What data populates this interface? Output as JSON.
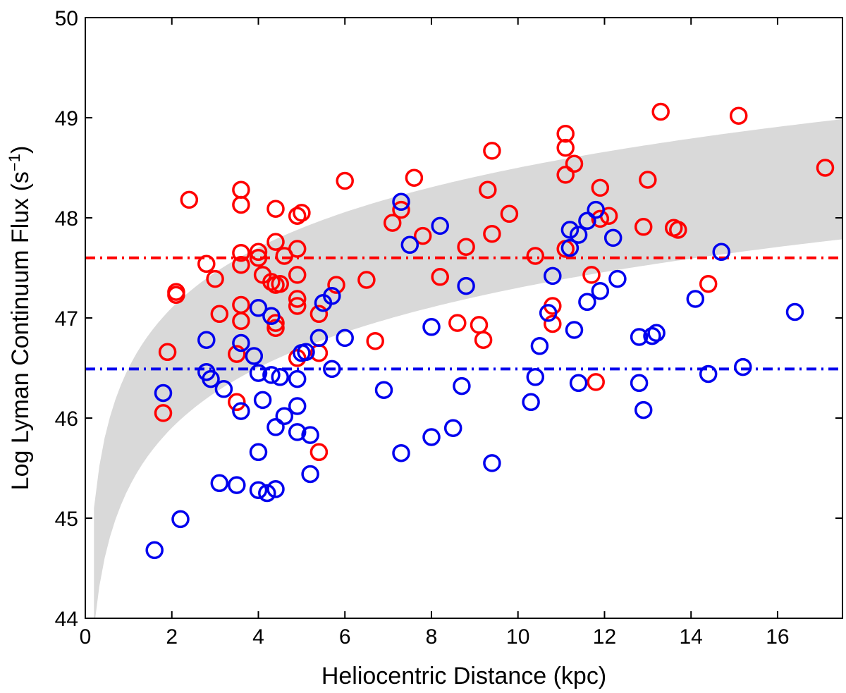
{
  "chart_data": {
    "type": "scatter",
    "title": "",
    "xlabel": "Heliocentric Distance (kpc)",
    "ylabel_main": "Log Lyman Continuum Flux (s",
    "ylabel_sup": "−1",
    "ylabel_end": ")",
    "xlim": [
      0,
      17.5
    ],
    "ylim": [
      44,
      50
    ],
    "xticks": [
      0,
      2,
      4,
      6,
      8,
      10,
      12,
      14,
      16
    ],
    "yticks": [
      44,
      45,
      46,
      47,
      48,
      49,
      50
    ],
    "grid": false,
    "colors": {
      "red": "#ff0000",
      "blue": "#0000ee",
      "band": "#d9d9d9",
      "frame": "#000000"
    },
    "reference_lines": [
      {
        "name": "red-threshold",
        "y": 47.6,
        "color": "#ff0000",
        "style": "dash-dot"
      },
      {
        "name": "blue-threshold",
        "y": 46.49,
        "color": "#0000ee",
        "style": "dash-dot"
      }
    ],
    "sensitivity_band": {
      "lower_at_1kpc": 45.3,
      "upper_at_1kpc": 46.5
    },
    "series": [
      {
        "name": "red",
        "color": "#ff0000",
        "points": [
          [
            1.8,
            46.05
          ],
          [
            1.9,
            46.66
          ],
          [
            2.1,
            47.23
          ],
          [
            2.1,
            47.26
          ],
          [
            2.4,
            48.18
          ],
          [
            2.8,
            47.54
          ],
          [
            3.0,
            47.39
          ],
          [
            3.1,
            47.04
          ],
          [
            3.5,
            46.64
          ],
          [
            3.5,
            46.16
          ],
          [
            3.6,
            48.28
          ],
          [
            3.6,
            48.13
          ],
          [
            3.6,
            47.65
          ],
          [
            3.6,
            47.53
          ],
          [
            3.6,
            47.13
          ],
          [
            3.6,
            46.97
          ],
          [
            4.0,
            47.66
          ],
          [
            4.0,
            47.6
          ],
          [
            4.1,
            47.43
          ],
          [
            4.3,
            47.36
          ],
          [
            4.4,
            48.09
          ],
          [
            4.4,
            47.76
          ],
          [
            4.4,
            47.33
          ],
          [
            4.4,
            46.95
          ],
          [
            4.4,
            46.9
          ],
          [
            4.5,
            47.34
          ],
          [
            4.6,
            47.62
          ],
          [
            4.9,
            48.02
          ],
          [
            4.9,
            47.69
          ],
          [
            4.9,
            47.43
          ],
          [
            4.9,
            47.19
          ],
          [
            4.9,
            47.12
          ],
          [
            4.9,
            46.6
          ],
          [
            5.0,
            48.05
          ],
          [
            5.4,
            47.04
          ],
          [
            5.4,
            46.65
          ],
          [
            5.4,
            45.66
          ],
          [
            5.8,
            47.33
          ],
          [
            6.0,
            48.37
          ],
          [
            6.5,
            47.38
          ],
          [
            6.7,
            46.77
          ],
          [
            7.1,
            47.95
          ],
          [
            7.3,
            48.08
          ],
          [
            7.6,
            48.4
          ],
          [
            7.8,
            47.82
          ],
          [
            8.2,
            47.41
          ],
          [
            8.6,
            46.95
          ],
          [
            8.8,
            47.71
          ],
          [
            9.1,
            46.93
          ],
          [
            9.2,
            46.78
          ],
          [
            9.3,
            48.28
          ],
          [
            9.4,
            47.84
          ],
          [
            9.4,
            48.67
          ],
          [
            9.8,
            48.04
          ],
          [
            10.4,
            47.62
          ],
          [
            10.8,
            47.12
          ],
          [
            10.8,
            46.94
          ],
          [
            11.1,
            48.84
          ],
          [
            11.1,
            48.7
          ],
          [
            11.1,
            48.43
          ],
          [
            11.1,
            47.69
          ],
          [
            11.3,
            48.54
          ],
          [
            11.7,
            47.43
          ],
          [
            11.8,
            46.36
          ],
          [
            11.9,
            48.3
          ],
          [
            11.9,
            47.99
          ],
          [
            12.1,
            48.02
          ],
          [
            12.9,
            47.91
          ],
          [
            13.0,
            48.38
          ],
          [
            13.3,
            49.06
          ],
          [
            13.6,
            47.9
          ],
          [
            13.7,
            47.88
          ],
          [
            14.4,
            47.34
          ],
          [
            15.1,
            49.02
          ],
          [
            17.1,
            48.5
          ]
        ]
      },
      {
        "name": "blue",
        "color": "#0000ee",
        "points": [
          [
            1.6,
            44.68
          ],
          [
            1.8,
            46.25
          ],
          [
            2.2,
            44.99
          ],
          [
            2.8,
            46.78
          ],
          [
            2.8,
            46.46
          ],
          [
            2.9,
            46.39
          ],
          [
            3.1,
            45.35
          ],
          [
            3.2,
            46.29
          ],
          [
            3.5,
            45.33
          ],
          [
            3.6,
            46.75
          ],
          [
            3.6,
            46.07
          ],
          [
            3.9,
            46.62
          ],
          [
            4.0,
            47.1
          ],
          [
            4.0,
            46.45
          ],
          [
            4.0,
            45.66
          ],
          [
            4.0,
            45.28
          ],
          [
            4.1,
            46.18
          ],
          [
            4.2,
            45.25
          ],
          [
            4.3,
            47.02
          ],
          [
            4.3,
            46.43
          ],
          [
            4.4,
            45.91
          ],
          [
            4.4,
            45.29
          ],
          [
            4.5,
            46.41
          ],
          [
            4.6,
            46.02
          ],
          [
            4.9,
            46.39
          ],
          [
            4.9,
            46.12
          ],
          [
            4.9,
            45.86
          ],
          [
            5.0,
            46.65
          ],
          [
            5.1,
            46.66
          ],
          [
            5.2,
            45.83
          ],
          [
            5.2,
            45.44
          ],
          [
            5.4,
            46.8
          ],
          [
            5.5,
            47.15
          ],
          [
            5.7,
            46.49
          ],
          [
            5.7,
            47.22
          ],
          [
            6.0,
            46.8
          ],
          [
            6.9,
            46.28
          ],
          [
            7.3,
            48.16
          ],
          [
            7.3,
            45.65
          ],
          [
            7.5,
            47.73
          ],
          [
            8.0,
            46.91
          ],
          [
            8.0,
            45.81
          ],
          [
            8.2,
            47.92
          ],
          [
            8.5,
            45.9
          ],
          [
            8.7,
            46.32
          ],
          [
            8.8,
            47.32
          ],
          [
            9.4,
            45.55
          ],
          [
            10.3,
            46.16
          ],
          [
            10.4,
            46.41
          ],
          [
            10.5,
            46.72
          ],
          [
            10.7,
            47.05
          ],
          [
            10.8,
            47.42
          ],
          [
            11.2,
            47.7
          ],
          [
            11.2,
            47.88
          ],
          [
            11.3,
            46.88
          ],
          [
            11.4,
            46.35
          ],
          [
            11.4,
            47.83
          ],
          [
            11.6,
            47.16
          ],
          [
            11.6,
            47.97
          ],
          [
            11.8,
            48.08
          ],
          [
            11.9,
            47.27
          ],
          [
            12.2,
            47.8
          ],
          [
            12.3,
            47.39
          ],
          [
            12.8,
            46.81
          ],
          [
            12.8,
            46.35
          ],
          [
            12.9,
            46.08
          ],
          [
            13.1,
            46.82
          ],
          [
            13.2,
            46.85
          ],
          [
            14.1,
            47.19
          ],
          [
            14.4,
            46.44
          ],
          [
            14.7,
            47.66
          ],
          [
            15.2,
            46.51
          ],
          [
            16.4,
            47.06
          ]
        ]
      }
    ]
  }
}
